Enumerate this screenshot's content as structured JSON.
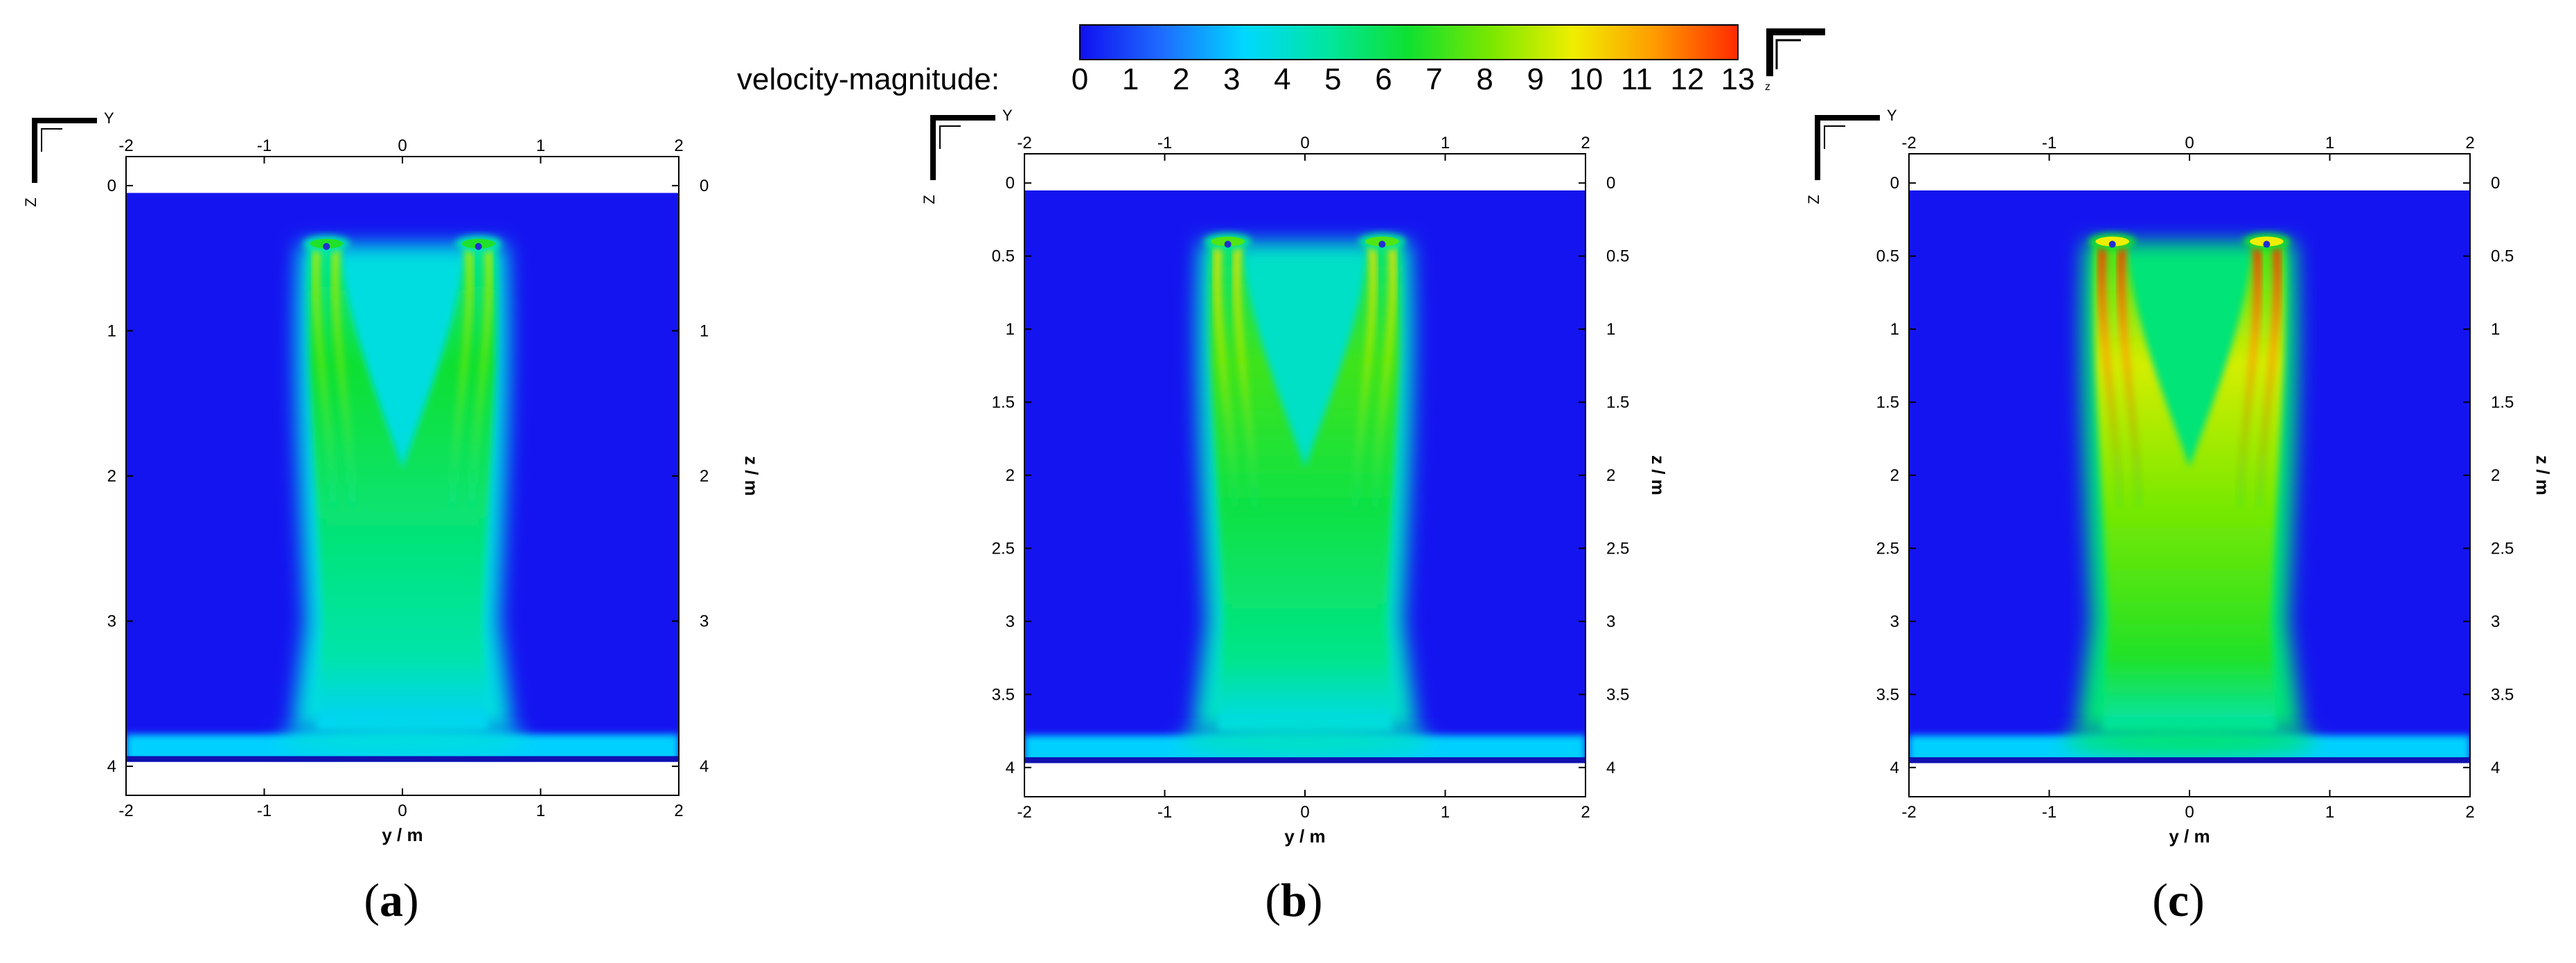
{
  "colorbar": {
    "title": "velocity-magnitude:",
    "ticks": [
      "0",
      "1",
      "2",
      "3",
      "4",
      "5",
      "6",
      "7",
      "8",
      "9",
      "10",
      "11",
      "12",
      "13"
    ],
    "min": 0,
    "max": 13,
    "colors": [
      "#1010f0",
      "#1e6cff",
      "#00d8ff",
      "#00e6a0",
      "#10e030",
      "#7ae800",
      "#f0ee00",
      "#ff9a00",
      "#ff2a00"
    ]
  },
  "triad_label": "z",
  "panels": [
    {
      "id": "a",
      "label_open": "(",
      "label_letter": "a",
      "label_close": ")",
      "x_label": "y / m",
      "z_label": "z / m",
      "x_ticks": [
        "-2",
        "-1",
        "0",
        "1",
        "2"
      ],
      "z_ticks": [
        "0",
        "1",
        "2",
        "3",
        "4"
      ],
      "triad_y": "Y",
      "triad_z": "Z",
      "jet_peak_speed": 9
    },
    {
      "id": "b",
      "label_open": "(",
      "label_letter": "b",
      "label_close": ")",
      "x_label": "y / m",
      "z_label": "z / m",
      "x_ticks": [
        "-2",
        "-1",
        "0",
        "1",
        "2"
      ],
      "z_ticks": [
        "0",
        "0.5",
        "1",
        "1.5",
        "2",
        "2.5",
        "3",
        "3.5",
        "4"
      ],
      "triad_y": "Y",
      "triad_z": "Z",
      "jet_peak_speed": 10
    },
    {
      "id": "c",
      "label_open": "(",
      "label_letter": "c",
      "label_close": ")",
      "x_label": "y / m",
      "z_label": "z / m",
      "x_ticks": [
        "-2",
        "-1",
        "0",
        "1",
        "2"
      ],
      "z_ticks": [
        "0",
        "0.5",
        "1",
        "1.5",
        "2",
        "2.5",
        "3",
        "3.5",
        "4"
      ],
      "triad_y": "Y",
      "triad_z": "Z",
      "jet_peak_speed": 13
    }
  ]
}
